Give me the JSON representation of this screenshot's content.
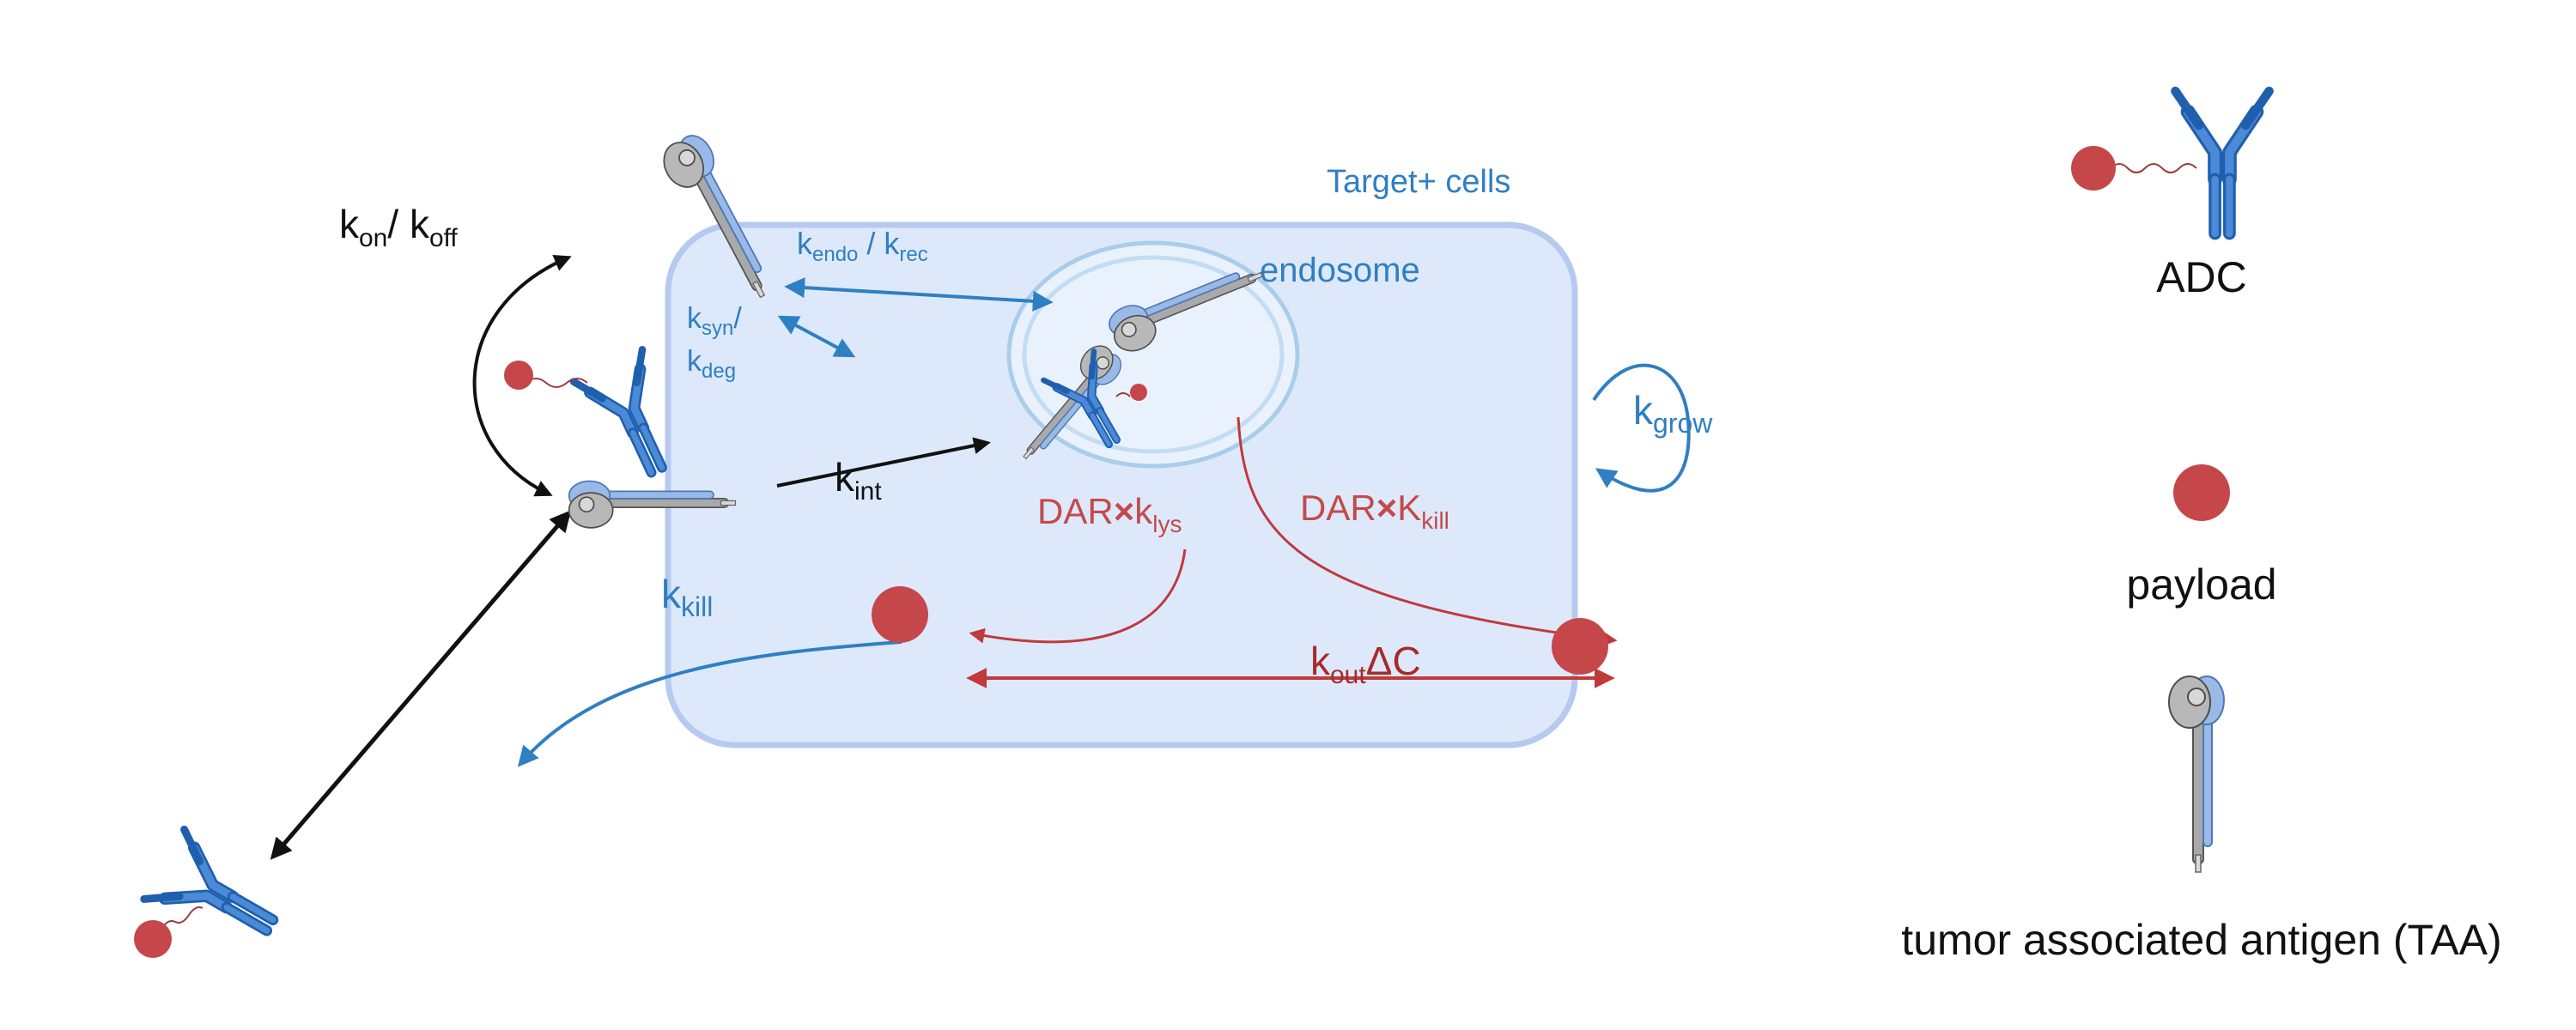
{
  "labels": {
    "target_cells": "Target+ cells",
    "endosome": "endosome",
    "adc_legend": "ADC",
    "payload_legend": "payload",
    "taa_legend": "tumor associated antigen (TAA)"
  },
  "rates": {
    "kon_koff": {
      "k1": "k",
      "s1": "on",
      "sep": "/ ",
      "k2": "k",
      "s2": "off"
    },
    "kendo_krec": {
      "k1": "k",
      "s1": "endo",
      "sep": " / ",
      "k2": "k",
      "s2": "rec"
    },
    "ksyn": {
      "k": "k",
      "s": "syn",
      "slash": "/"
    },
    "kdeg": {
      "k": "k",
      "s": "deg"
    },
    "kint": {
      "k": "k",
      "s": "int"
    },
    "kgrow": {
      "k": "k",
      "s": "grow"
    },
    "kkill": {
      "k": "k",
      "s": "kill"
    },
    "dar_klys": {
      "pre": "DAR",
      "times": "×",
      "k": "k",
      "s": "lys"
    },
    "dar_Kkill": {
      "pre": "DAR",
      "times": "×",
      "k": "K",
      "s": "kill"
    },
    "kout": {
      "k": "k",
      "s": "out",
      "post": "ΔC"
    }
  },
  "colors": {
    "cell_fill": "#dde9fb",
    "cell_border": "#b6c9f0",
    "endosome_fill": "#e9f2fc",
    "endosome_ring": "#a9cdeb",
    "blue": "#2f7fc3",
    "antibody_blue": "#3f7bc8",
    "payload_red": "#c5474a",
    "arrow_red": "#c0393b",
    "text_red": "#c44a4a",
    "black": "#111111",
    "antigen_gray": "#9a9a9a",
    "antigen_light_blue": "#9ab9e6"
  }
}
